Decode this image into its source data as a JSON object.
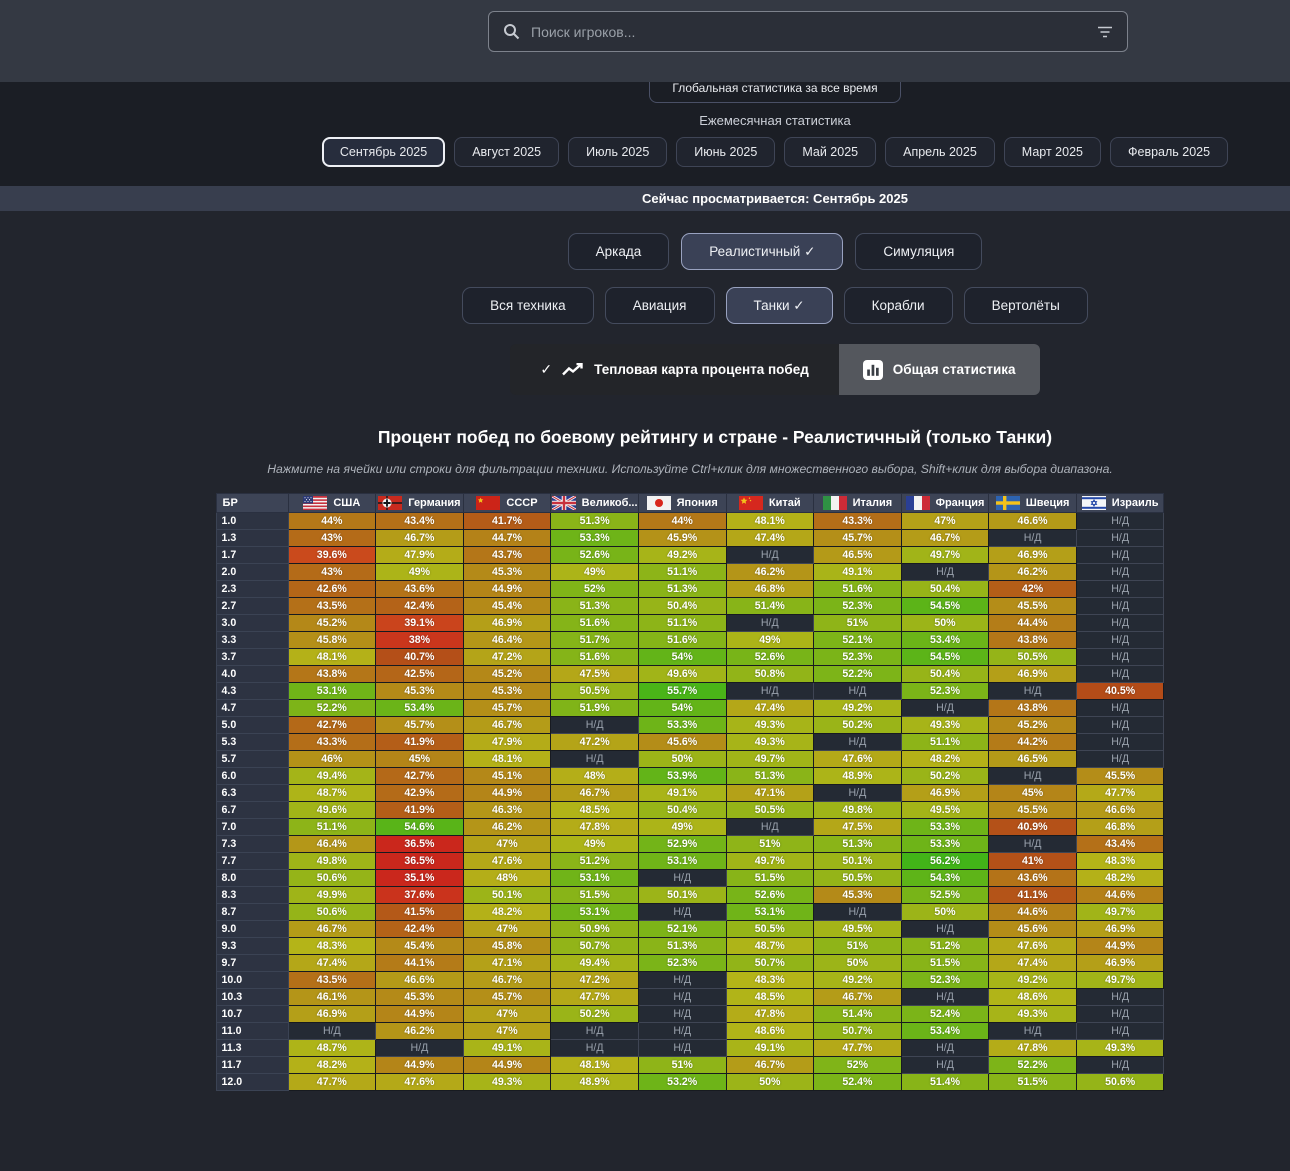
{
  "search": {
    "placeholder": "Поиск игроков..."
  },
  "global_stats_button": "Глобальная статистика за все время",
  "monthly": {
    "label": "Ежемесячная статистика",
    "selected": "Сентябрь 2025",
    "months": [
      "Сентябрь 2025",
      "Август 2025",
      "Июль 2025",
      "Июнь 2025",
      "Май 2025",
      "Апрель 2025",
      "Март 2025",
      "Февраль 2025"
    ]
  },
  "viewing_bar": {
    "text": "Сейчас просматривается: Сентябрь 2025"
  },
  "game_modes": [
    {
      "label": "Аркада",
      "selected": false
    },
    {
      "label": "Реалистичный",
      "selected": true
    },
    {
      "label": "Симуляция",
      "selected": false
    }
  ],
  "vehicle_types": [
    {
      "label": "Вся техника",
      "selected": false
    },
    {
      "label": "Авиация",
      "selected": false
    },
    {
      "label": "Танки",
      "selected": true
    },
    {
      "label": "Корабли",
      "selected": false
    },
    {
      "label": "Вертолёты",
      "selected": false
    }
  ],
  "view_tabs": [
    {
      "label": "Тепловая карта процента побед",
      "icon": "trend-up-icon",
      "selected": true,
      "checked": true
    },
    {
      "label": "Общая статистика",
      "icon": "bar-chart-icon",
      "selected": false,
      "checked": false
    }
  ],
  "heatmap": {
    "title": "Процент побед по боевому рейтингу и стране - Реалистичный (только Танки)",
    "subtitle": "Нажмите на ячейки или строки для фильтрации техники. Используйте Ctrl+клик для множественного выбора, Shift+клик для выбора диапазона.",
    "na_label": "Н/Д"
  },
  "chart_data": {
    "type": "heatmap",
    "title": "Процент побед по боевому рейтингу и стране - Реалистичный (только Танки)",
    "row_header": "БР",
    "value_unit": "%",
    "na_label": "Н/Д",
    "color_scale": {
      "low_value": 35,
      "high_value": 56,
      "low_color": "#d32f1a",
      "mid_color": "#a5781d",
      "high_color": "#4cb11a",
      "na_color": "#242a34"
    },
    "columns": [
      {
        "label": "США",
        "flag": "usa"
      },
      {
        "label": "Германия",
        "flag": "germany"
      },
      {
        "label": "СССР",
        "flag": "ussr"
      },
      {
        "label": "Великоб...",
        "flag": "uk"
      },
      {
        "label": "Япония",
        "flag": "japan"
      },
      {
        "label": "Китай",
        "flag": "china"
      },
      {
        "label": "Италия",
        "flag": "italy"
      },
      {
        "label": "Франция",
        "flag": "france"
      },
      {
        "label": "Швеция",
        "flag": "sweden"
      },
      {
        "label": "Израиль",
        "flag": "israel"
      }
    ],
    "rows": [
      {
        "br": "1.0",
        "values": [
          44,
          43.4,
          41.7,
          51.3,
          44,
          48.1,
          43.3,
          47,
          46.6,
          null
        ]
      },
      {
        "br": "1.3",
        "values": [
          43,
          46.7,
          44.7,
          53.3,
          45.9,
          47.4,
          45.7,
          46.7,
          null,
          null
        ]
      },
      {
        "br": "1.7",
        "values": [
          39.6,
          47.9,
          43.7,
          52.6,
          49.2,
          null,
          46.5,
          49.7,
          46.9,
          null
        ]
      },
      {
        "br": "2.0",
        "values": [
          43,
          49,
          45.3,
          49,
          51.1,
          46.2,
          49.1,
          null,
          46.2,
          null
        ]
      },
      {
        "br": "2.3",
        "values": [
          42.6,
          43.6,
          44.9,
          52,
          51.3,
          46.8,
          51.6,
          50.4,
          42,
          null
        ]
      },
      {
        "br": "2.7",
        "values": [
          43.5,
          42.4,
          45.4,
          51.3,
          50.4,
          51.4,
          52.3,
          54.5,
          45.5,
          null
        ]
      },
      {
        "br": "3.0",
        "values": [
          45.2,
          39.1,
          46.9,
          51.6,
          51.1,
          null,
          51,
          50,
          44.4,
          null
        ]
      },
      {
        "br": "3.3",
        "values": [
          45.8,
          38,
          46.4,
          51.7,
          51.6,
          49,
          52.1,
          53.4,
          43.8,
          null
        ]
      },
      {
        "br": "3.7",
        "values": [
          48.1,
          40.7,
          47.2,
          51.6,
          54,
          52.6,
          52.3,
          54.5,
          50.5,
          null
        ]
      },
      {
        "br": "4.0",
        "values": [
          43.8,
          42.5,
          45.2,
          47.5,
          49.6,
          50.8,
          52.2,
          50.4,
          46.9,
          null
        ]
      },
      {
        "br": "4.3",
        "values": [
          53.1,
          45.3,
          45.3,
          50.5,
          55.7,
          null,
          null,
          52.3,
          null,
          40.5
        ]
      },
      {
        "br": "4.7",
        "values": [
          52.2,
          53.4,
          45.7,
          51.9,
          54,
          47.4,
          49.2,
          null,
          43.8,
          null
        ]
      },
      {
        "br": "5.0",
        "values": [
          42.7,
          45.7,
          46.7,
          null,
          53.3,
          49.3,
          50.2,
          49.3,
          45.2,
          null
        ]
      },
      {
        "br": "5.3",
        "values": [
          43.3,
          41.9,
          47.9,
          47.2,
          45.6,
          49.3,
          null,
          51.1,
          44.2,
          null
        ]
      },
      {
        "br": "5.7",
        "values": [
          46,
          45,
          48.1,
          null,
          50,
          49.7,
          47.6,
          48.2,
          46.5,
          null
        ]
      },
      {
        "br": "6.0",
        "values": [
          49.4,
          42.7,
          45.1,
          48,
          53.9,
          51.3,
          48.9,
          50.2,
          null,
          45.5
        ]
      },
      {
        "br": "6.3",
        "values": [
          48.7,
          42.9,
          44.9,
          46.7,
          49.1,
          47.1,
          null,
          46.9,
          45,
          47.7
        ]
      },
      {
        "br": "6.7",
        "values": [
          49.6,
          41.9,
          46.3,
          48.5,
          50.4,
          50.5,
          49.8,
          49.5,
          45.5,
          46.6
        ]
      },
      {
        "br": "7.0",
        "values": [
          51.1,
          54.6,
          46.2,
          47.8,
          49,
          null,
          47.5,
          53.3,
          40.9,
          46.8
        ]
      },
      {
        "br": "7.3",
        "values": [
          46.4,
          36.5,
          47,
          49,
          52.9,
          51,
          51.3,
          53.3,
          null,
          43.4
        ]
      },
      {
        "br": "7.7",
        "values": [
          49.8,
          36.5,
          47.6,
          51.2,
          53.1,
          49.7,
          50.1,
          56.2,
          41,
          48.3
        ]
      },
      {
        "br": "8.0",
        "values": [
          50.6,
          35.1,
          48,
          53.1,
          null,
          51.5,
          50.5,
          54.3,
          43.6,
          48.2
        ]
      },
      {
        "br": "8.3",
        "values": [
          49.9,
          37.6,
          50.1,
          51.5,
          50.1,
          52.6,
          45.3,
          52.5,
          41.1,
          44.6
        ]
      },
      {
        "br": "8.7",
        "values": [
          50.6,
          41.5,
          48.2,
          53.1,
          null,
          53.1,
          null,
          50,
          44.6,
          49.7
        ]
      },
      {
        "br": "9.0",
        "values": [
          46.7,
          42.4,
          47,
          50.9,
          52.1,
          50.5,
          49.5,
          null,
          45.6,
          46.9
        ]
      },
      {
        "br": "9.3",
        "values": [
          48.3,
          45.4,
          45.8,
          50.7,
          51.3,
          48.7,
          51,
          51.2,
          47.6,
          44.9
        ]
      },
      {
        "br": "9.7",
        "values": [
          47.4,
          44.1,
          47.1,
          49.4,
          52.3,
          50.7,
          50,
          51.5,
          47.4,
          46.9
        ]
      },
      {
        "br": "10.0",
        "values": [
          43.5,
          46.6,
          46.7,
          47.2,
          null,
          48.3,
          49.2,
          52.3,
          49.2,
          49.7
        ]
      },
      {
        "br": "10.3",
        "values": [
          46.1,
          45.3,
          45.7,
          47.7,
          null,
          48.5,
          46.7,
          null,
          48.6,
          null
        ]
      },
      {
        "br": "10.7",
        "values": [
          46.9,
          44.9,
          47,
          50.2,
          null,
          47.8,
          51.4,
          52.4,
          49.3,
          null
        ]
      },
      {
        "br": "11.0",
        "values": [
          null,
          46.2,
          47,
          null,
          null,
          48.6,
          50.7,
          53.4,
          null,
          null
        ]
      },
      {
        "br": "11.3",
        "values": [
          48.7,
          null,
          49.1,
          null,
          null,
          49.1,
          47.7,
          null,
          47.8,
          49.3
        ]
      },
      {
        "br": "11.7",
        "values": [
          48.2,
          44.9,
          44.9,
          48.1,
          51,
          46.7,
          52,
          null,
          52.2,
          null
        ]
      },
      {
        "br": "12.0",
        "values": [
          47.7,
          47.6,
          49.3,
          48.9,
          53.2,
          50,
          52.4,
          51.4,
          51.5,
          50.6
        ]
      }
    ]
  }
}
